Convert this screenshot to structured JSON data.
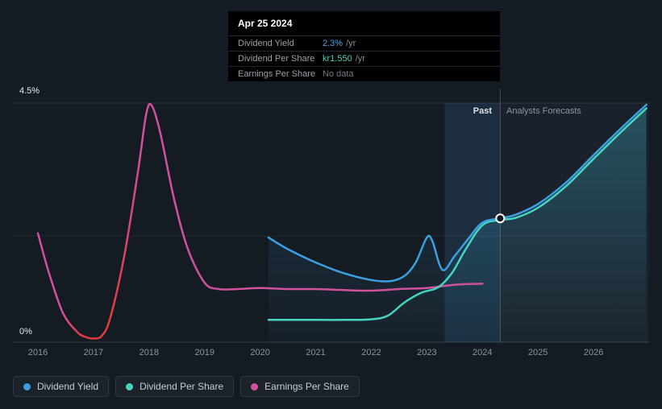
{
  "tooltip": {
    "date": "Apr 25 2024",
    "rows": [
      {
        "label": "Dividend Yield",
        "value": "2.3%",
        "suffix": " /yr",
        "color": "#4da6e8"
      },
      {
        "label": "Dividend Per Share",
        "value": "kr1.550",
        "suffix": " /yr",
        "color": "#46d4bf"
      },
      {
        "label": "Earnings Per Share",
        "value": "No data",
        "suffix": "",
        "color": "#70777f"
      }
    ]
  },
  "axis": {
    "y_max_label": "4.5%",
    "y_min_label": "0%"
  },
  "zones": {
    "past_label": "Past",
    "forecast_label": "Analysts Forecasts"
  },
  "legend": [
    {
      "label": "Dividend Yield",
      "color": "#3b9fe0"
    },
    {
      "label": "Dividend Per Share",
      "color": "#46d4bf"
    },
    {
      "label": "Earnings Per Share",
      "color": "#d0519e"
    }
  ],
  "chart_data": {
    "type": "line",
    "title": "",
    "xlabel": "",
    "ylabel": "",
    "xlim": [
      2015.55,
      2027.0
    ],
    "ylim": [
      0,
      4.5
    ],
    "x_ticks": [
      2016,
      2017,
      2018,
      2019,
      2020,
      2021,
      2022,
      2023,
      2024,
      2025,
      2026
    ],
    "y_gridlines": [
      4.5,
      2.0,
      0
    ],
    "divider_x": 2024.32,
    "highlight_band": [
      2023.32,
      2024.32
    ],
    "marker": {
      "x": 2024.32,
      "y": 2.33,
      "series": "Dividend Yield"
    },
    "series": [
      {
        "name": "Earnings Per Share",
        "color": "#d0519e",
        "dip_color": "#e23b3d",
        "points": [
          [
            2016.0,
            2.05
          ],
          [
            2016.2,
            1.3
          ],
          [
            2016.45,
            0.55
          ],
          [
            2016.7,
            0.2
          ],
          [
            2016.85,
            0.1
          ],
          [
            2017.0,
            0.07
          ],
          [
            2017.15,
            0.12
          ],
          [
            2017.3,
            0.45
          ],
          [
            2017.55,
            1.6
          ],
          [
            2017.8,
            3.2
          ],
          [
            2017.95,
            4.3
          ],
          [
            2018.05,
            4.45
          ],
          [
            2018.2,
            3.95
          ],
          [
            2018.45,
            2.7
          ],
          [
            2018.7,
            1.75
          ],
          [
            2019.0,
            1.12
          ],
          [
            2019.25,
            1.0
          ],
          [
            2019.6,
            1.0
          ],
          [
            2020.0,
            1.02
          ],
          [
            2020.5,
            1.0
          ],
          [
            2021.0,
            1.0
          ],
          [
            2021.5,
            0.98
          ],
          [
            2022.0,
            0.97
          ],
          [
            2022.5,
            1.0
          ],
          [
            2023.0,
            1.02
          ],
          [
            2023.5,
            1.08
          ],
          [
            2024.0,
            1.1
          ]
        ]
      },
      {
        "name": "Dividend Yield",
        "color": "#3b9fe0",
        "points": [
          [
            2020.15,
            1.97
          ],
          [
            2020.5,
            1.75
          ],
          [
            2021.0,
            1.5
          ],
          [
            2021.5,
            1.3
          ],
          [
            2022.0,
            1.17
          ],
          [
            2022.35,
            1.15
          ],
          [
            2022.6,
            1.25
          ],
          [
            2022.8,
            1.5
          ],
          [
            2023.0,
            1.97
          ],
          [
            2023.1,
            1.9
          ],
          [
            2023.28,
            1.36
          ],
          [
            2023.5,
            1.62
          ],
          [
            2023.75,
            1.95
          ],
          [
            2024.0,
            2.25
          ],
          [
            2024.32,
            2.33
          ],
          [
            2024.6,
            2.4
          ],
          [
            2025.0,
            2.6
          ],
          [
            2025.5,
            3.0
          ],
          [
            2026.0,
            3.52
          ],
          [
            2026.5,
            4.03
          ],
          [
            2026.95,
            4.47
          ]
        ]
      },
      {
        "name": "Dividend Per Share",
        "color": "#46d4bf",
        "points": [
          [
            2020.15,
            0.42
          ],
          [
            2020.6,
            0.42
          ],
          [
            2021.0,
            0.42
          ],
          [
            2021.5,
            0.42
          ],
          [
            2022.0,
            0.43
          ],
          [
            2022.3,
            0.5
          ],
          [
            2022.6,
            0.75
          ],
          [
            2022.9,
            0.93
          ],
          [
            2023.2,
            1.03
          ],
          [
            2023.45,
            1.3
          ],
          [
            2023.7,
            1.75
          ],
          [
            2024.0,
            2.2
          ],
          [
            2024.32,
            2.3
          ],
          [
            2024.6,
            2.34
          ],
          [
            2025.0,
            2.53
          ],
          [
            2025.5,
            2.93
          ],
          [
            2026.0,
            3.45
          ],
          [
            2026.5,
            3.96
          ],
          [
            2026.95,
            4.4
          ]
        ]
      }
    ]
  }
}
